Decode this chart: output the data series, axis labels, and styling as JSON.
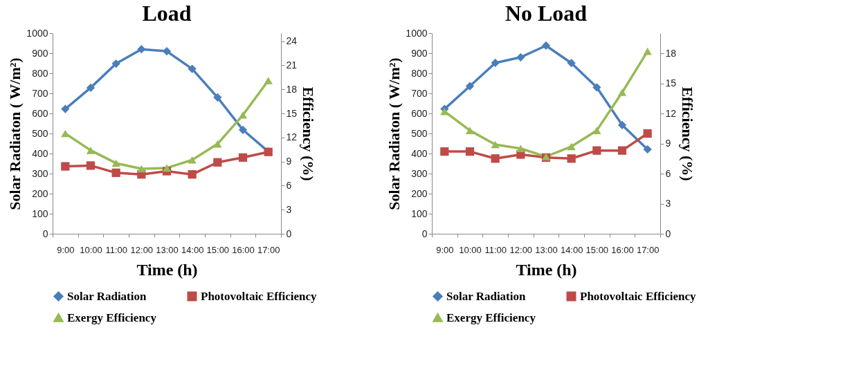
{
  "chart_data": [
    {
      "type": "line",
      "title": "Load",
      "xlabel": "Time (h)",
      "ylabel": "Solar Radiaton ( W/m²)",
      "y2label": "Efficiency (%)",
      "categories": [
        "9:00",
        "10:00",
        "11:00",
        "12:00",
        "13:00",
        "14:00",
        "15:00",
        "16:00",
        "17:00"
      ],
      "ylim": [
        0,
        1000
      ],
      "yticks": [
        0,
        100,
        200,
        300,
        400,
        500,
        600,
        700,
        800,
        900,
        1000
      ],
      "y2lim": [
        0,
        25
      ],
      "y2ticks": [
        0,
        3,
        6,
        9,
        12,
        15,
        18,
        21,
        24
      ],
      "grid": false,
      "legend": "bottom",
      "series": [
        {
          "name": "Solar Radiation",
          "color": "#4a7ebb",
          "marker": "diamond",
          "values": [
            622,
            728,
            848,
            920,
            910,
            822,
            680,
            518,
            410
          ]
        },
        {
          "name": "Photovoltaic Efficiency",
          "color": "#be4b48",
          "marker": "square",
          "axis": "y2",
          "values": [
            8.4,
            8.5,
            7.6,
            7.4,
            7.8,
            7.4,
            8.9,
            9.5,
            10.2
          ]
        },
        {
          "name": "Exergy Efficiency",
          "color": "#98b954",
          "marker": "triangle",
          "axis": "y2",
          "values": [
            12.5,
            10.4,
            8.8,
            8.1,
            8.2,
            9.2,
            11.2,
            14.8,
            19.1
          ]
        }
      ]
    },
    {
      "type": "line",
      "title": "No Load",
      "xlabel": "Time (h)",
      "ylabel": "Solar Radiaton ( W/m²)",
      "y2label": "Efficiency (%)",
      "categories": [
        "9:00",
        "10:00",
        "11:00",
        "12:00",
        "13:00",
        "14:00",
        "15:00",
        "16:00",
        "17:00"
      ],
      "ylim": [
        0,
        1000
      ],
      "yticks": [
        0,
        100,
        200,
        300,
        400,
        500,
        600,
        700,
        800,
        900,
        1000
      ],
      "y2lim": [
        0,
        20
      ],
      "y2ticks": [
        0,
        3,
        6,
        9,
        12,
        15,
        18
      ],
      "grid": false,
      "legend": "bottom",
      "series": [
        {
          "name": "Solar Radiation",
          "color": "#4a7ebb",
          "marker": "diamond",
          "values": [
            622,
            736,
            852,
            880,
            938,
            851,
            730,
            542,
            421
          ]
        },
        {
          "name": "Photovoltaic Efficiency",
          "color": "#be4b48",
          "marker": "square",
          "axis": "y2",
          "values": [
            8.2,
            8.2,
            7.5,
            7.9,
            7.6,
            7.5,
            8.3,
            8.3,
            10.0
          ]
        },
        {
          "name": "Exergy Efficiency",
          "color": "#98b954",
          "marker": "triangle",
          "axis": "y2",
          "values": [
            12.2,
            10.3,
            8.9,
            8.5,
            7.7,
            8.7,
            10.3,
            14.1,
            18.2
          ]
        }
      ]
    }
  ]
}
